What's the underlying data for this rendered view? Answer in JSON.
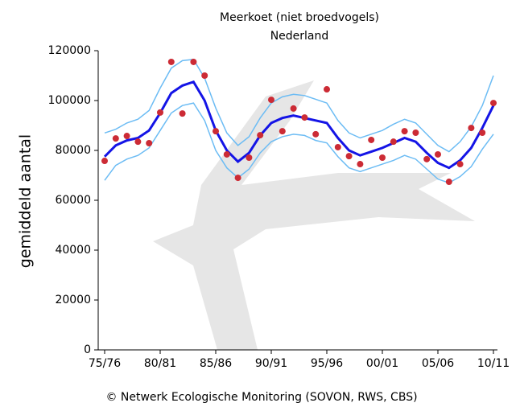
{
  "chart_data": {
    "type": "line",
    "title": "Meerkoet (niet broedvogels)",
    "subtitle": "Nederland",
    "ylabel": "gemiddeld aantal",
    "footer": "© Netwerk Ecologische Monitoring (SOVON, RWS, CBS)",
    "categories": [
      "75/76",
      null,
      null,
      null,
      null,
      "80/81",
      null,
      null,
      null,
      null,
      "85/86",
      null,
      null,
      null,
      null,
      "90/91",
      null,
      null,
      null,
      null,
      "95/96",
      null,
      null,
      null,
      null,
      "00/01",
      null,
      null,
      null,
      null,
      "05/06",
      null,
      null,
      null,
      null,
      "10/11"
    ],
    "ylim": [
      0,
      120000
    ],
    "yticks": [
      0,
      20000,
      40000,
      60000,
      80000,
      100000,
      120000
    ],
    "series": [
      {
        "color": "#6cbcf4",
        "mode": "lines",
        "width": 1.5,
        "values": [
          87000,
          88500,
          91000,
          92500,
          96000,
          105000,
          113000,
          116000,
          116500,
          109000,
          97000,
          87000,
          82000,
          85500,
          93000,
          99000,
          101500,
          102500,
          102000,
          100500,
          99000,
          92000,
          87000,
          85000,
          86500,
          88000,
          90500,
          92500,
          91000,
          86500,
          82000,
          79500,
          83500,
          89500,
          98000,
          110000
        ]
      },
      {
        "color": "#6cbcf4",
        "mode": "lines",
        "width": 1.5,
        "values": [
          68000,
          74000,
          76500,
          78000,
          81000,
          88000,
          95000,
          98000,
          99000,
          92000,
          80000,
          73000,
          69000,
          72500,
          79000,
          83500,
          85500,
          86500,
          86000,
          84000,
          83000,
          77500,
          73000,
          71500,
          73000,
          74500,
          76000,
          78000,
          76500,
          72500,
          68500,
          67000,
          69500,
          73500,
          80500,
          86500
        ]
      },
      {
        "color": "#1414e6",
        "mode": "lines",
        "width": 3,
        "values": [
          77500,
          82000,
          84000,
          85000,
          88000,
          95000,
          103000,
          106000,
          107500,
          100000,
          88000,
          80000,
          75500,
          79000,
          86000,
          91000,
          93000,
          94000,
          93000,
          92000,
          91000,
          85000,
          80000,
          78000,
          79500,
          81000,
          83000,
          85000,
          83500,
          79000,
          75000,
          73000,
          76000,
          81000,
          89000,
          98000
        ]
      },
      {
        "color": "#cc2b35",
        "mode": "markers",
        "values": [
          75800,
          84800,
          85800,
          83500,
          82900,
          95200,
          115500,
          94800,
          115500,
          110000,
          87700,
          78400,
          69000,
          77100,
          86100,
          100300,
          87700,
          96800,
          93200,
          86500,
          104500,
          81300,
          77700,
          74500,
          84200,
          77100,
          83500,
          87700,
          87100,
          76500,
          78400,
          67400,
          74500,
          89000,
          87100,
          99000
        ]
      }
    ]
  }
}
